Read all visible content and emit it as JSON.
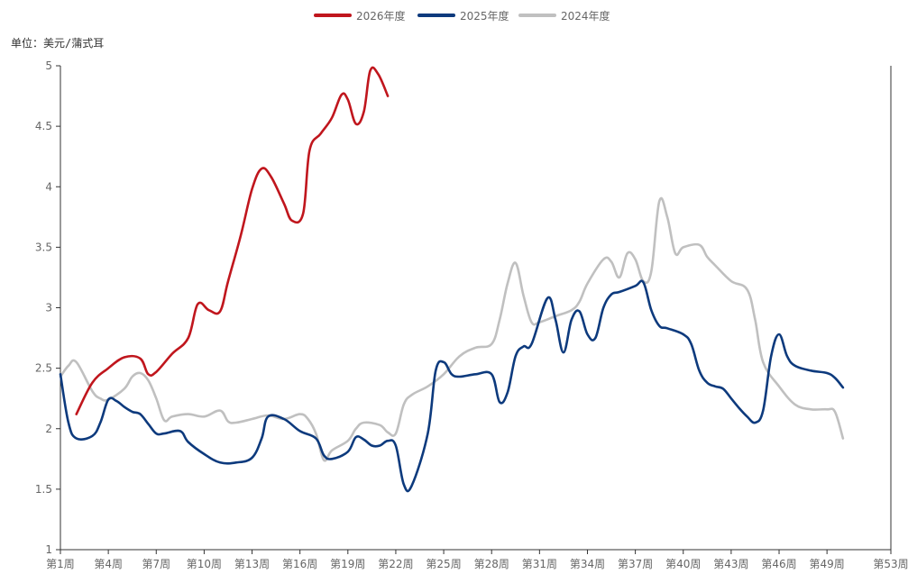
{
  "chart_data": {
    "type": "line",
    "unit_label": "单位：美元/蒲式耳",
    "ylim": [
      1,
      5
    ],
    "y_ticks": [
      "1",
      "1.5",
      "2",
      "2.5",
      "3",
      "3.5",
      "4",
      "4.5",
      "5"
    ],
    "x_ticks": [
      "第1周",
      "第4周",
      "第7周",
      "第10周",
      "第13周",
      "第16周",
      "第19周",
      "第22周",
      "第25周",
      "第28周",
      "第31周",
      "第34周",
      "第37周",
      "第40周",
      "第43周",
      "第46周",
      "第49周",
      "第53周"
    ],
    "x_range": [
      1,
      53
    ],
    "legend_position": "top-center",
    "grid": false,
    "series": [
      {
        "name": "2026年度",
        "color": "#c0161d",
        "points": [
          [
            2,
            2.12
          ],
          [
            3,
            2.38
          ],
          [
            4,
            2.5
          ],
          [
            5,
            2.59
          ],
          [
            6,
            2.58
          ],
          [
            6.5,
            2.45
          ],
          [
            7,
            2.47
          ],
          [
            8,
            2.62
          ],
          [
            9,
            2.75
          ],
          [
            9.6,
            3.03
          ],
          [
            10.3,
            2.98
          ],
          [
            11,
            2.97
          ],
          [
            11.5,
            3.22
          ],
          [
            12.3,
            3.6
          ],
          [
            13,
            3.98
          ],
          [
            13.6,
            4.15
          ],
          [
            14.2,
            4.08
          ],
          [
            15,
            3.86
          ],
          [
            15.5,
            3.72
          ],
          [
            16.2,
            3.78
          ],
          [
            16.6,
            4.3
          ],
          [
            17.3,
            4.44
          ],
          [
            18,
            4.57
          ],
          [
            18.6,
            4.76
          ],
          [
            19,
            4.72
          ],
          [
            19.5,
            4.52
          ],
          [
            20,
            4.62
          ],
          [
            20.4,
            4.96
          ],
          [
            20.9,
            4.93
          ],
          [
            21.5,
            4.75
          ]
        ]
      },
      {
        "name": "2025年度",
        "color": "#0d3a7d",
        "points": [
          [
            1,
            2.45
          ],
          [
            1.5,
            2.05
          ],
          [
            2,
            1.92
          ],
          [
            3,
            1.94
          ],
          [
            3.5,
            2.05
          ],
          [
            4,
            2.24
          ],
          [
            4.5,
            2.23
          ],
          [
            5,
            2.18
          ],
          [
            5.5,
            2.14
          ],
          [
            6,
            2.12
          ],
          [
            6.5,
            2.04
          ],
          [
            7,
            1.96
          ],
          [
            7.5,
            1.96
          ],
          [
            8.5,
            1.98
          ],
          [
            9,
            1.89
          ],
          [
            10,
            1.79
          ],
          [
            11,
            1.72
          ],
          [
            12,
            1.72
          ],
          [
            13,
            1.76
          ],
          [
            13.6,
            1.92
          ],
          [
            14,
            2.1
          ],
          [
            15,
            2.08
          ],
          [
            16,
            1.98
          ],
          [
            17,
            1.92
          ],
          [
            17.5,
            1.78
          ],
          [
            18,
            1.75
          ],
          [
            19,
            1.81
          ],
          [
            19.5,
            1.93
          ],
          [
            20,
            1.91
          ],
          [
            20.5,
            1.86
          ],
          [
            21,
            1.86
          ],
          [
            21.5,
            1.9
          ],
          [
            22,
            1.86
          ],
          [
            22.5,
            1.54
          ],
          [
            23,
            1.53
          ],
          [
            24,
            1.96
          ],
          [
            24.5,
            2.48
          ],
          [
            25,
            2.55
          ],
          [
            25.5,
            2.45
          ],
          [
            26,
            2.43
          ],
          [
            27,
            2.45
          ],
          [
            28,
            2.45
          ],
          [
            28.5,
            2.22
          ],
          [
            29,
            2.3
          ],
          [
            29.5,
            2.6
          ],
          [
            30,
            2.68
          ],
          [
            30.5,
            2.7
          ],
          [
            31.5,
            3.08
          ],
          [
            32,
            2.9
          ],
          [
            32.5,
            2.63
          ],
          [
            33,
            2.9
          ],
          [
            33.5,
            2.97
          ],
          [
            34,
            2.78
          ],
          [
            34.5,
            2.75
          ],
          [
            35,
            3.0
          ],
          [
            35.5,
            3.11
          ],
          [
            36,
            3.13
          ],
          [
            37,
            3.18
          ],
          [
            37.5,
            3.21
          ],
          [
            38,
            2.98
          ],
          [
            38.5,
            2.85
          ],
          [
            39,
            2.83
          ],
          [
            40,
            2.78
          ],
          [
            40.5,
            2.7
          ],
          [
            41,
            2.48
          ],
          [
            41.5,
            2.38
          ],
          [
            42,
            2.35
          ],
          [
            42.5,
            2.33
          ],
          [
            43,
            2.25
          ],
          [
            43.5,
            2.17
          ],
          [
            44,
            2.1
          ],
          [
            44.5,
            2.05
          ],
          [
            45,
            2.15
          ],
          [
            45.5,
            2.6
          ],
          [
            46,
            2.78
          ],
          [
            46.5,
            2.6
          ],
          [
            47,
            2.52
          ],
          [
            48,
            2.48
          ],
          [
            49,
            2.46
          ],
          [
            49.5,
            2.42
          ],
          [
            50,
            2.34
          ]
        ]
      },
      {
        "name": "2024年度",
        "color": "#c0c0c0",
        "points": [
          [
            1,
            2.43
          ],
          [
            1.5,
            2.52
          ],
          [
            2,
            2.55
          ],
          [
            3,
            2.31
          ],
          [
            3.5,
            2.25
          ],
          [
            4,
            2.24
          ],
          [
            5,
            2.33
          ],
          [
            5.5,
            2.43
          ],
          [
            6,
            2.46
          ],
          [
            6.5,
            2.4
          ],
          [
            7,
            2.25
          ],
          [
            7.5,
            2.07
          ],
          [
            8,
            2.1
          ],
          [
            9,
            2.12
          ],
          [
            10,
            2.1
          ],
          [
            11,
            2.15
          ],
          [
            11.5,
            2.06
          ],
          [
            12,
            2.05
          ],
          [
            13,
            2.08
          ],
          [
            14,
            2.11
          ],
          [
            15,
            2.08
          ],
          [
            16,
            2.12
          ],
          [
            16.5,
            2.08
          ],
          [
            17,
            1.96
          ],
          [
            17.5,
            1.74
          ],
          [
            18,
            1.82
          ],
          [
            19,
            1.9
          ],
          [
            19.5,
            2.0
          ],
          [
            20,
            2.05
          ],
          [
            21,
            2.03
          ],
          [
            21.5,
            1.97
          ],
          [
            22,
            1.96
          ],
          [
            22.5,
            2.2
          ],
          [
            23,
            2.28
          ],
          [
            24,
            2.35
          ],
          [
            25,
            2.45
          ],
          [
            26,
            2.6
          ],
          [
            27,
            2.67
          ],
          [
            28,
            2.7
          ],
          [
            28.5,
            2.9
          ],
          [
            29,
            3.2
          ],
          [
            29.5,
            3.37
          ],
          [
            30,
            3.1
          ],
          [
            30.5,
            2.88
          ],
          [
            31,
            2.88
          ],
          [
            32,
            2.93
          ],
          [
            33,
            2.98
          ],
          [
            33.5,
            3.05
          ],
          [
            34,
            3.2
          ],
          [
            35,
            3.4
          ],
          [
            35.5,
            3.38
          ],
          [
            36,
            3.25
          ],
          [
            36.5,
            3.45
          ],
          [
            37,
            3.4
          ],
          [
            37.5,
            3.22
          ],
          [
            38,
            3.3
          ],
          [
            38.5,
            3.88
          ],
          [
            39,
            3.75
          ],
          [
            39.5,
            3.45
          ],
          [
            40,
            3.5
          ],
          [
            41,
            3.52
          ],
          [
            41.5,
            3.42
          ],
          [
            42,
            3.35
          ],
          [
            43,
            3.22
          ],
          [
            44,
            3.15
          ],
          [
            44.5,
            2.9
          ],
          [
            45,
            2.55
          ],
          [
            46,
            2.35
          ],
          [
            47,
            2.2
          ],
          [
            48,
            2.16
          ],
          [
            49,
            2.16
          ],
          [
            49.5,
            2.14
          ],
          [
            50,
            1.92
          ]
        ]
      }
    ]
  }
}
